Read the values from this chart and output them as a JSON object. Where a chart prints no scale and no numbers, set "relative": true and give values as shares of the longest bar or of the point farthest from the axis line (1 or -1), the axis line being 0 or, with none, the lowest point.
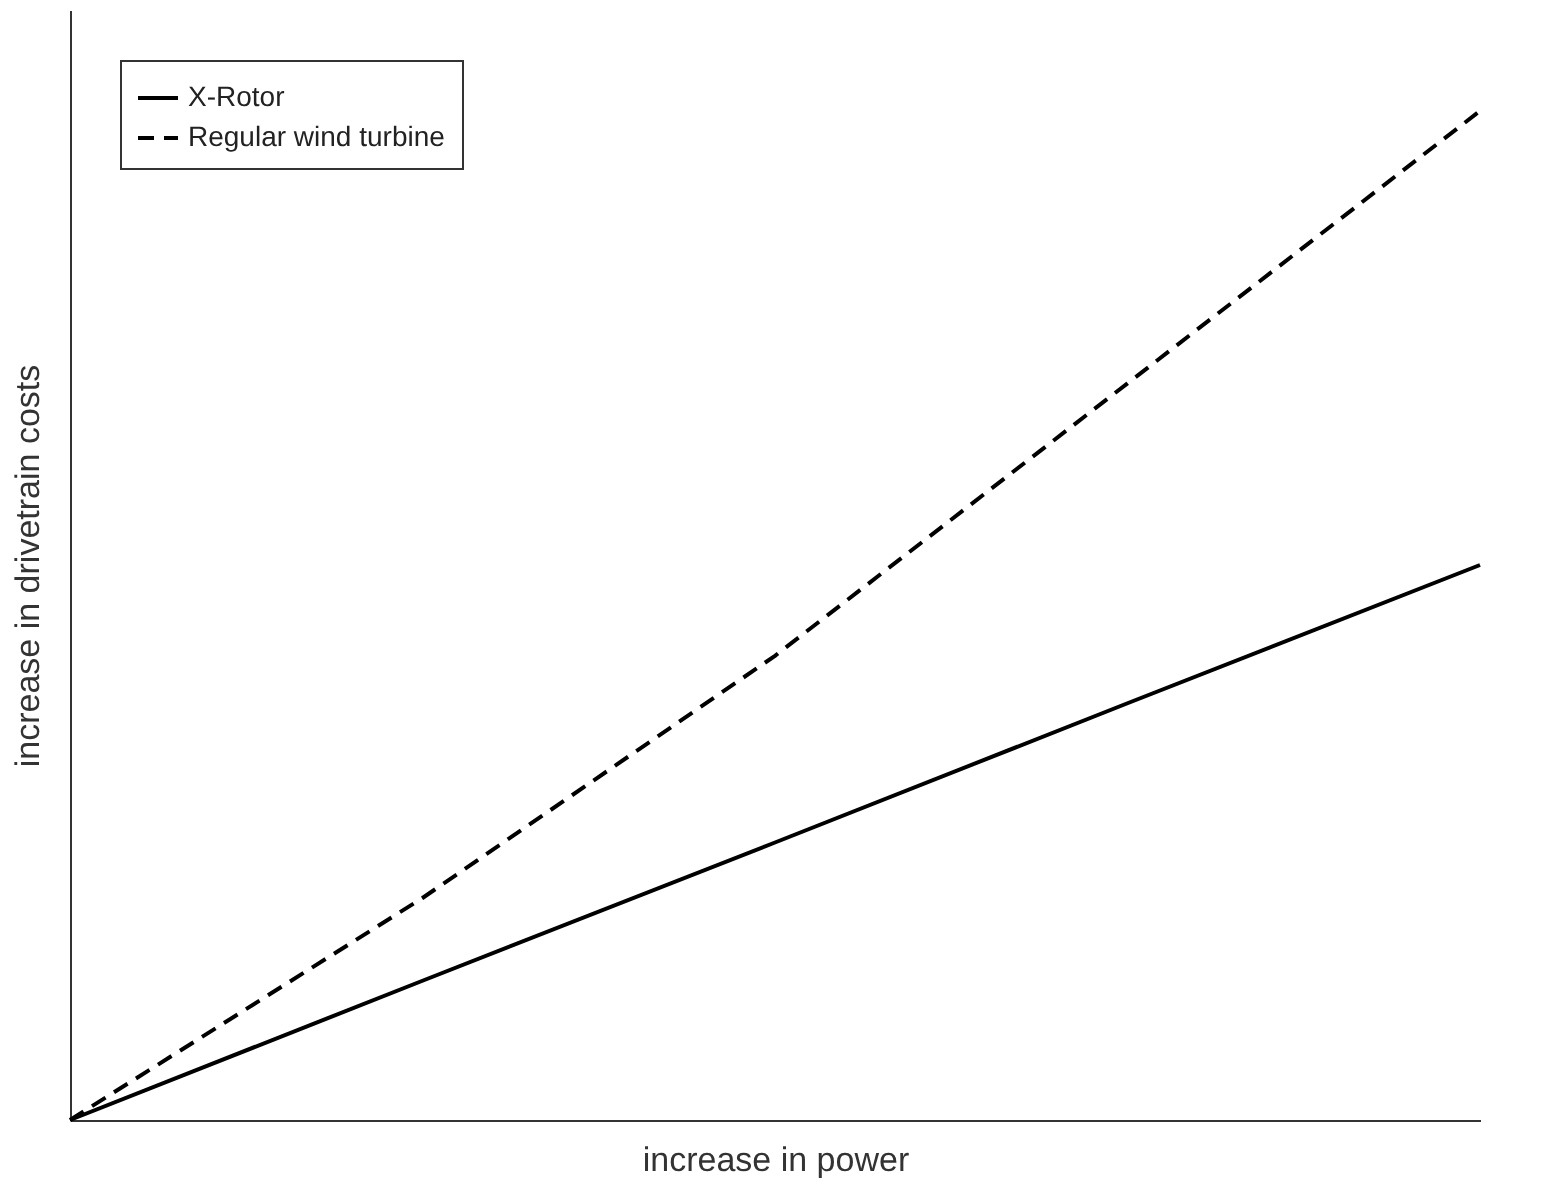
{
  "chart_data": {
    "type": "line",
    "relative": true,
    "xlabel": "increase in power",
    "ylabel": "increase in drivetrain costs",
    "categories": [
      null,
      null,
      null,
      null,
      null
    ],
    "series": [
      {
        "name": "X-Rotor",
        "color": "#000000",
        "line_style": "solid",
        "values": [
          0,
          0.138,
          0.275,
          0.413,
          0.55
        ]
      },
      {
        "name": "Regular wind turbine",
        "color": "#000000",
        "line_style": "dashed",
        "values": [
          0,
          0.22,
          0.46,
          0.73,
          1
        ]
      }
    ],
    "legend": "top left",
    "grid": false,
    "marker": "none",
    "tick_labels": false
  }
}
